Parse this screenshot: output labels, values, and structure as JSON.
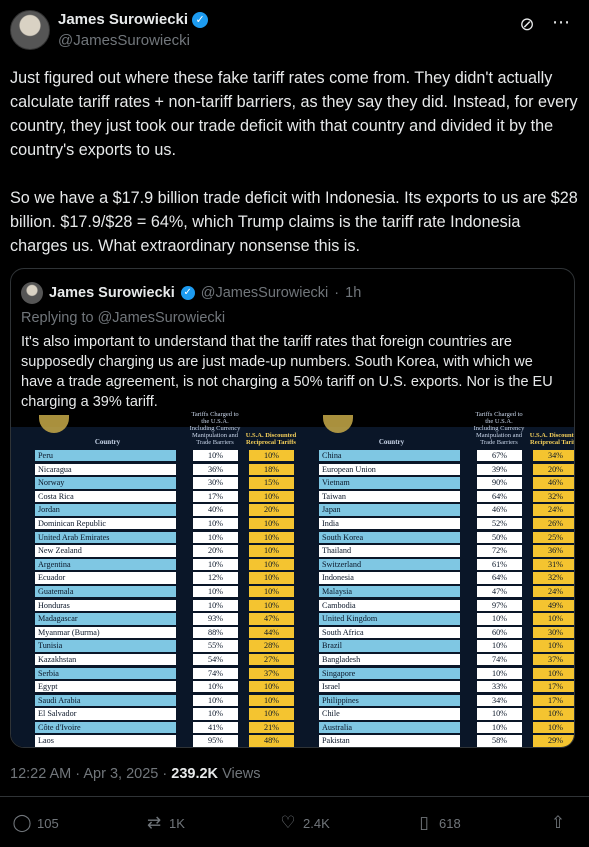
{
  "author": {
    "display_name": "James Surowiecki",
    "handle": "@JamesSurowiecki",
    "verified_icon": "✓"
  },
  "icons": {
    "grok": "grok-icon",
    "more": "more-icon"
  },
  "tweet": {
    "paragraph1": "Just figured out where these fake tariff rates come from. They didn't actually calculate tariff rates + non-tariff barriers, as they say they did. Instead, for every country, they just took our trade deficit with that country and divided it by the country's exports to us.",
    "paragraph2": "So we have a $17.9 billion trade deficit with Indonesia. Its exports to us are $28 billion. $17.9/$28 = 64%, which Trump claims is the tariff rate Indonesia charges us. What extraordinary nonsense this is."
  },
  "quote": {
    "display_name": "James Surowiecki",
    "handle": "@JamesSurowiecki",
    "separator": "·",
    "age": "1h",
    "replying_to": "Replying to @JamesSurowiecki",
    "text": "It's also important to understand that the tariff rates that foreign countries are supposedly charging us are just made-up numbers. South Korea, with which we have a trade agreement, is not charging a 50% tariff on U.S. exports. Nor is the EU charging a 39% tariff.",
    "table_headers": {
      "country": "Country",
      "rate": "Tariffs Charged to the U.S.A. Including Currency Manipulation and Trade Barriers",
      "recip": "U.S.A. Discounted Reciprocal Tariffs"
    },
    "left_table": [
      {
        "country": "Peru",
        "rate": "10%",
        "recip": "10%"
      },
      {
        "country": "Nicaragua",
        "rate": "36%",
        "recip": "18%"
      },
      {
        "country": "Norway",
        "rate": "30%",
        "recip": "15%"
      },
      {
        "country": "Costa Rica",
        "rate": "17%",
        "recip": "10%"
      },
      {
        "country": "Jordan",
        "rate": "40%",
        "recip": "20%"
      },
      {
        "country": "Dominican Republic",
        "rate": "10%",
        "recip": "10%"
      },
      {
        "country": "United Arab Emirates",
        "rate": "10%",
        "recip": "10%"
      },
      {
        "country": "New Zealand",
        "rate": "20%",
        "recip": "10%"
      },
      {
        "country": "Argentina",
        "rate": "10%",
        "recip": "10%"
      },
      {
        "country": "Ecuador",
        "rate": "12%",
        "recip": "10%"
      },
      {
        "country": "Guatemala",
        "rate": "10%",
        "recip": "10%"
      },
      {
        "country": "Honduras",
        "rate": "10%",
        "recip": "10%"
      },
      {
        "country": "Madagascar",
        "rate": "93%",
        "recip": "47%"
      },
      {
        "country": "Myanmar (Burma)",
        "rate": "88%",
        "recip": "44%"
      },
      {
        "country": "Tunisia",
        "rate": "55%",
        "recip": "28%"
      },
      {
        "country": "Kazakhstan",
        "rate": "54%",
        "recip": "27%"
      },
      {
        "country": "Serbia",
        "rate": "74%",
        "recip": "37%"
      },
      {
        "country": "Egypt",
        "rate": "10%",
        "recip": "10%"
      },
      {
        "country": "Saudi Arabia",
        "rate": "10%",
        "recip": "10%"
      },
      {
        "country": "El Salvador",
        "rate": "10%",
        "recip": "10%"
      },
      {
        "country": "Côte d'Ivoire",
        "rate": "41%",
        "recip": "21%"
      },
      {
        "country": "Laos",
        "rate": "95%",
        "recip": "48%"
      }
    ],
    "right_table": [
      {
        "country": "China",
        "rate": "67%",
        "recip": "34%"
      },
      {
        "country": "European Union",
        "rate": "39%",
        "recip": "20%"
      },
      {
        "country": "Vietnam",
        "rate": "90%",
        "recip": "46%"
      },
      {
        "country": "Taiwan",
        "rate": "64%",
        "recip": "32%"
      },
      {
        "country": "Japan",
        "rate": "46%",
        "recip": "24%"
      },
      {
        "country": "India",
        "rate": "52%",
        "recip": "26%"
      },
      {
        "country": "South Korea",
        "rate": "50%",
        "recip": "25%"
      },
      {
        "country": "Thailand",
        "rate": "72%",
        "recip": "36%"
      },
      {
        "country": "Switzerland",
        "rate": "61%",
        "recip": "31%"
      },
      {
        "country": "Indonesia",
        "rate": "64%",
        "recip": "32%"
      },
      {
        "country": "Malaysia",
        "rate": "47%",
        "recip": "24%"
      },
      {
        "country": "Cambodia",
        "rate": "97%",
        "recip": "49%"
      },
      {
        "country": "United Kingdom",
        "rate": "10%",
        "recip": "10%"
      },
      {
        "country": "South Africa",
        "rate": "60%",
        "recip": "30%"
      },
      {
        "country": "Brazil",
        "rate": "10%",
        "recip": "10%"
      },
      {
        "country": "Bangladesh",
        "rate": "74%",
        "recip": "37%"
      },
      {
        "country": "Singapore",
        "rate": "10%",
        "recip": "10%"
      },
      {
        "country": "Israel",
        "rate": "33%",
        "recip": "17%"
      },
      {
        "country": "Philippines",
        "rate": "34%",
        "recip": "17%"
      },
      {
        "country": "Chile",
        "rate": "10%",
        "recip": "10%"
      },
      {
        "country": "Australia",
        "rate": "10%",
        "recip": "10%"
      },
      {
        "country": "Pakistan",
        "rate": "58%",
        "recip": "29%"
      }
    ]
  },
  "meta": {
    "time": "12:22 AM",
    "separator": "·",
    "date": "Apr 3, 2025",
    "views_count": "239.2K",
    "views_label": "Views"
  },
  "actions": {
    "replies": "105",
    "reposts": "1K",
    "likes": "2.4K",
    "bookmarks": "618"
  }
}
